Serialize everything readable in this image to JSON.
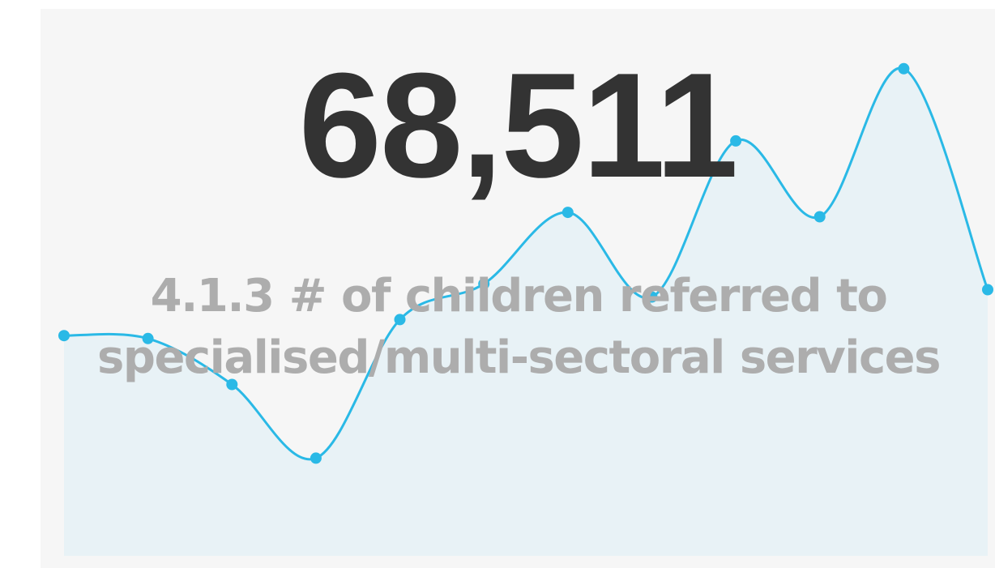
{
  "kpi": {
    "value": "68,511",
    "label": "4.1.3 # of children referred to specialised/multi-sectoral services"
  },
  "colors": {
    "line": "#2ab9e6",
    "area": "#e8f2f6",
    "value_text": "#333333",
    "label_text": "#adadad",
    "card_background": "#f6f6f6"
  },
  "chart_data": {
    "type": "area",
    "title": "",
    "xlabel": "",
    "ylabel": "",
    "grid": false,
    "x": [
      1,
      2,
      3,
      4,
      5,
      6,
      7,
      8,
      9,
      10,
      11,
      12
    ],
    "series": [
      {
        "values": [
          3020,
          2980,
          2350,
          1340,
          3240,
          3730,
          4710,
          3550,
          5690,
          4650,
          6680,
          3650
        ]
      }
    ],
    "ylim": [
      0,
      7500
    ]
  }
}
